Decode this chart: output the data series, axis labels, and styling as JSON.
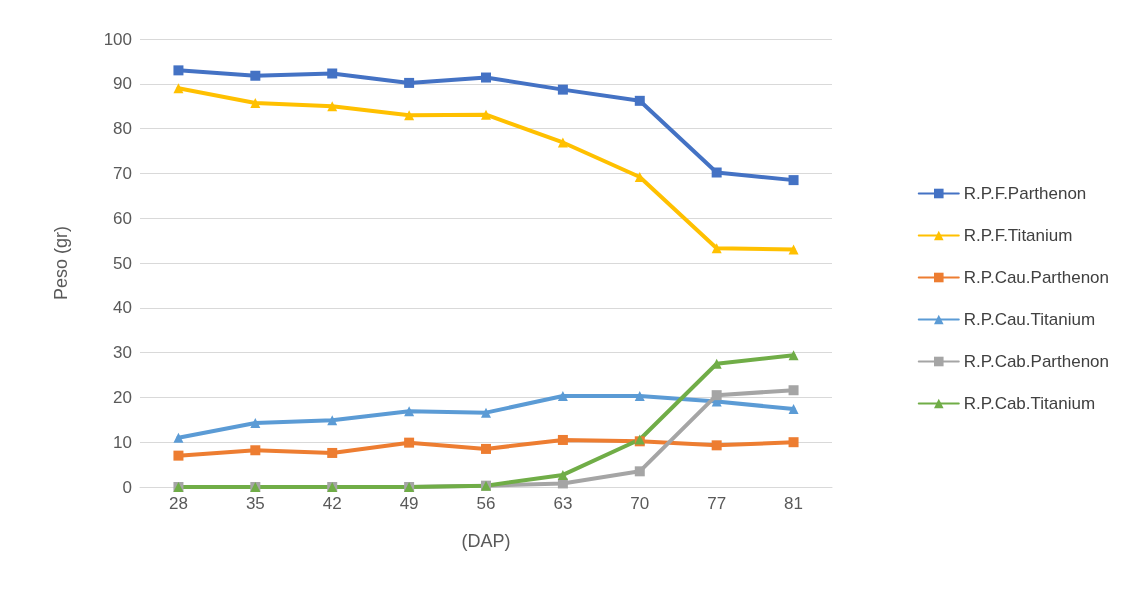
{
  "chart_data": {
    "type": "line",
    "xlabel": "(DAP)",
    "ylabel": "Peso (gr)",
    "categories": [
      "28",
      "35",
      "42",
      "49",
      "56",
      "63",
      "70",
      "77",
      "81"
    ],
    "ylim": [
      0,
      100
    ],
    "yticks": [
      0,
      10,
      20,
      30,
      40,
      50,
      60,
      70,
      80,
      90,
      100
    ],
    "grid": "y",
    "legend": "right",
    "line_style": "solid",
    "series": [
      {
        "name": "R.P.F.Parthenon",
        "color": "#4472c4",
        "marker": "square",
        "values": [
          93,
          91.8,
          92.3,
          90.2,
          91.4,
          88.7,
          86.2,
          70.2,
          68.5
        ]
      },
      {
        "name": "R.P.F.Titanium",
        "color": "#ffc000",
        "marker": "triangle",
        "values": [
          89,
          85.7,
          85,
          83,
          83.1,
          76.9,
          69.2,
          53.3,
          53
        ]
      },
      {
        "name": "R.P.Cau.Parthenon",
        "color": "#ed7d31",
        "marker": "square",
        "values": [
          7,
          8.2,
          7.6,
          9.9,
          8.5,
          10.5,
          10.2,
          9.3,
          10
        ]
      },
      {
        "name": "R.P.Cau.Titanium",
        "color": "#5b9bd5",
        "marker": "triangle",
        "values": [
          11,
          14.3,
          14.9,
          16.9,
          16.6,
          20.3,
          20.3,
          19.1,
          17.4
        ]
      },
      {
        "name": "R.P.Cab.Parthenon",
        "color": "#a5a5a5",
        "marker": "square",
        "values": [
          0,
          0,
          0,
          0,
          0.3,
          0.8,
          3.5,
          20.5,
          21.6
        ]
      },
      {
        "name": "R.P.Cab.Titanium",
        "color": "#70ad47",
        "marker": "triangle",
        "values": [
          0,
          0,
          0,
          0,
          0.3,
          2.7,
          10.6,
          27.5,
          29.4
        ]
      }
    ]
  }
}
